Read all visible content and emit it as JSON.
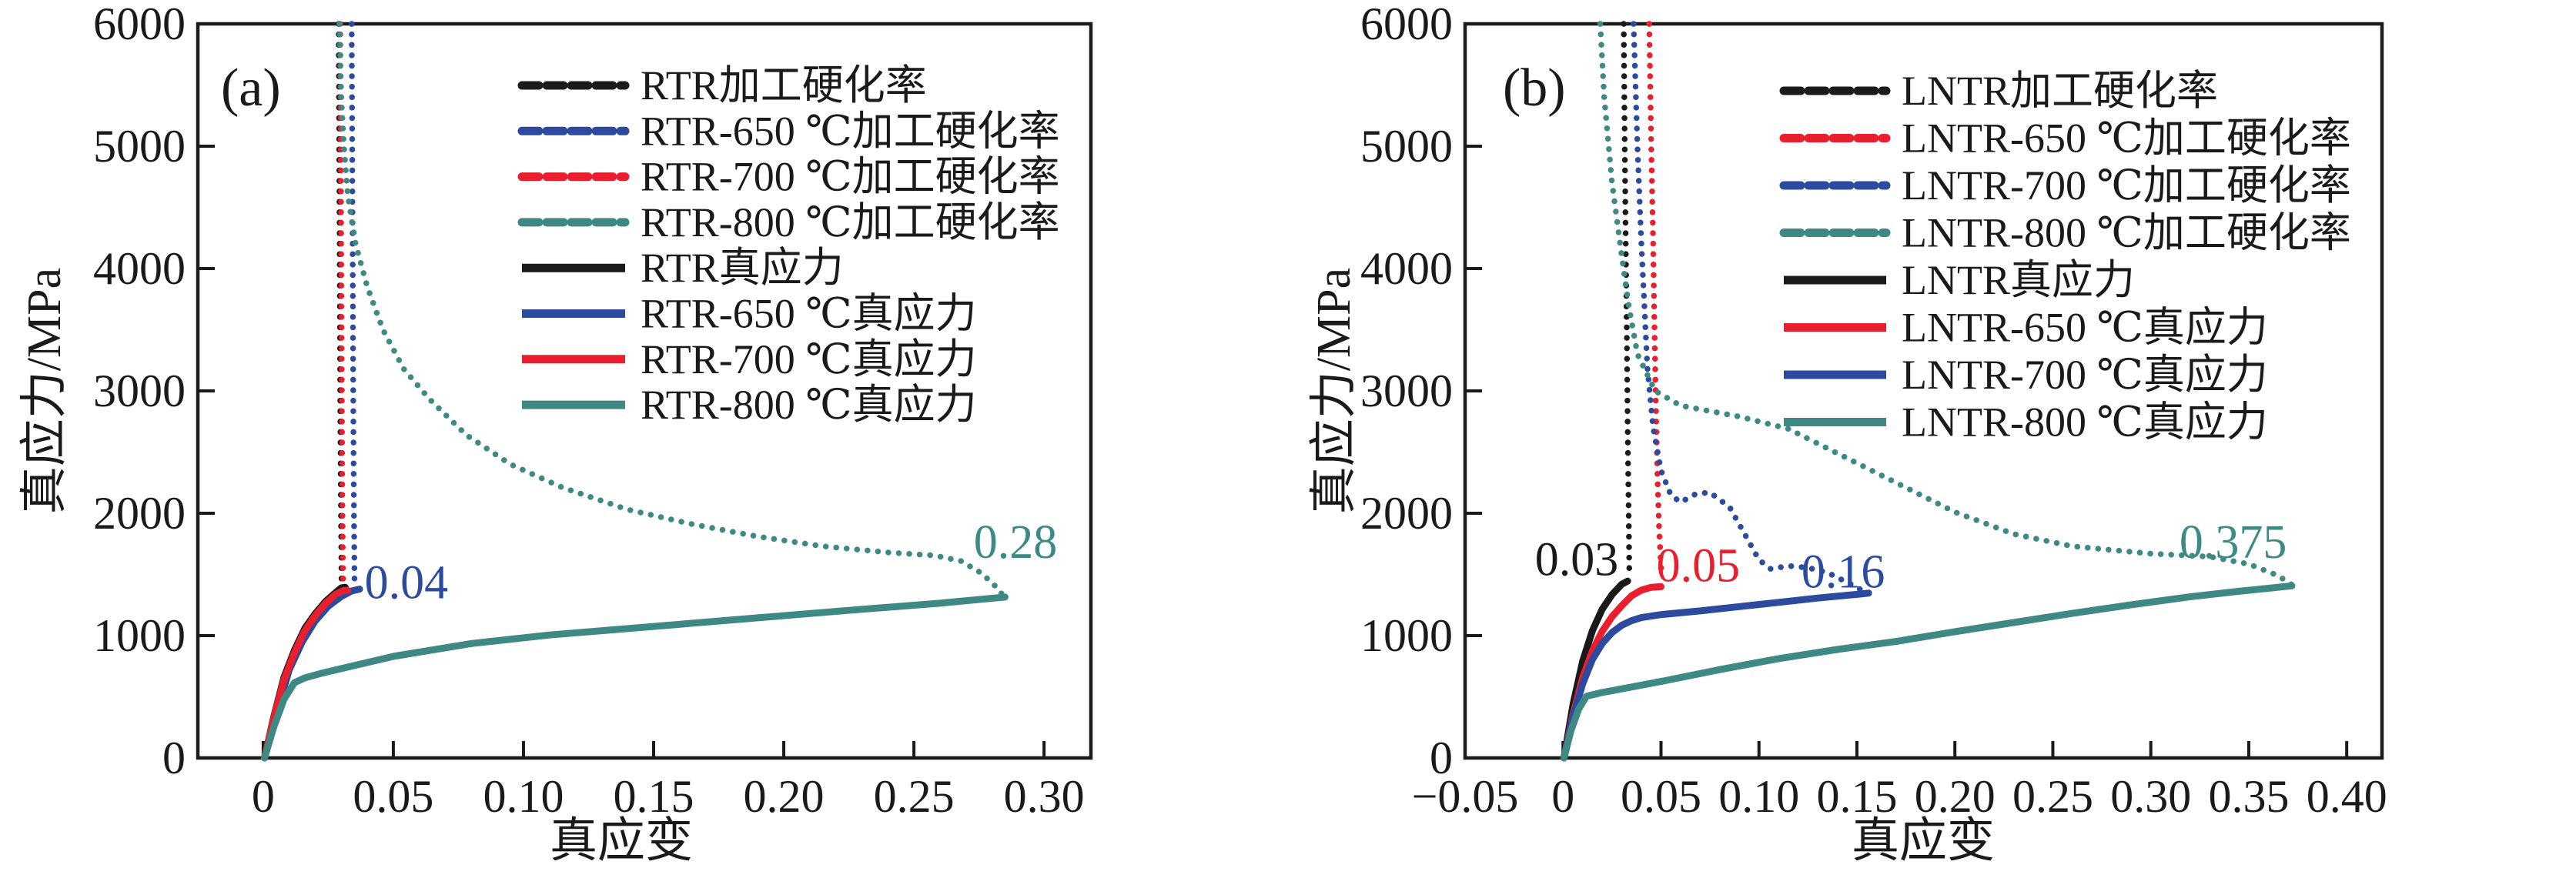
{
  "colors": {
    "black": "#1a1a1a",
    "blue": "#2d4b9e",
    "red": "#ea1f2e",
    "teal": "#3e8984"
  },
  "panel_a": {
    "letter": "(a)",
    "y_title": "真应力/MPa",
    "x_title": "真应变"
  },
  "panel_b": {
    "letter": "(b)",
    "y_title": "真应力/MPa",
    "x_title": "真应变"
  },
  "chart_data": [
    {
      "id": "a",
      "type": "line",
      "title": "",
      "xlabel": "真应变",
      "ylabel": "真应力/MPa",
      "xlim": [
        -0.0251,
        0.318
      ],
      "ylim": [
        0,
        6000
      ],
      "grid": false,
      "legend_position": "upper-right-inside",
      "x_ticks": [
        {
          "v": 0,
          "label": "0"
        },
        {
          "v": 0.05,
          "label": "0.05"
        },
        {
          "v": 0.1,
          "label": "0.10"
        },
        {
          "v": 0.15,
          "label": "0.15"
        },
        {
          "v": 0.2,
          "label": "0.20"
        },
        {
          "v": 0.25,
          "label": "0.25"
        },
        {
          "v": 0.3,
          "label": "0.30"
        }
      ],
      "y_ticks": [
        {
          "v": 0,
          "label": "0"
        },
        {
          "v": 1000,
          "label": "1000"
        },
        {
          "v": 2000,
          "label": "2000"
        },
        {
          "v": 3000,
          "label": "3000"
        },
        {
          "v": 4000,
          "label": "4000"
        },
        {
          "v": 5000,
          "label": "5000"
        },
        {
          "v": 6000,
          "label": "6000"
        }
      ],
      "series": [
        {
          "name": "RTR加工硬化率",
          "color": "black",
          "style": "dotted",
          "points": [
            [
              0.029,
              6000
            ],
            [
              0.0292,
              5000
            ],
            [
              0.0294,
              4000
            ],
            [
              0.0296,
              3000
            ],
            [
              0.0298,
              2200
            ],
            [
              0.03,
              1700
            ],
            [
              0.0301,
              1460
            ]
          ]
        },
        {
          "name": "RTR-650 ℃加工硬化率",
          "color": "blue",
          "style": "dotted",
          "points": [
            [
              0.034,
              6000
            ],
            [
              0.0342,
              5000
            ],
            [
              0.0344,
              4000
            ],
            [
              0.0346,
              3000
            ],
            [
              0.0348,
              2200
            ],
            [
              0.035,
              1700
            ],
            [
              0.0351,
              1430
            ]
          ]
        },
        {
          "name": "RTR-700 ℃加工硬化率",
          "color": "red",
          "style": "dotted",
          "points": [
            [
              0.0296,
              6000
            ],
            [
              0.0298,
              5000
            ],
            [
              0.03,
              4000
            ],
            [
              0.0302,
              3000
            ],
            [
              0.0304,
              2200
            ],
            [
              0.0306,
              1700
            ],
            [
              0.0307,
              1420
            ]
          ]
        },
        {
          "name": "RTR-800 ℃加工硬化率",
          "color": "teal",
          "style": "dotted",
          "points": [
            [
              0.0293,
              6000
            ],
            [
              0.03,
              5400
            ],
            [
              0.031,
              5000
            ],
            [
              0.0325,
              4600
            ],
            [
              0.0355,
              4200
            ],
            [
              0.04,
              3850
            ],
            [
              0.046,
              3500
            ],
            [
              0.054,
              3180
            ],
            [
              0.064,
              2930
            ],
            [
              0.078,
              2640
            ],
            [
              0.095,
              2400
            ],
            [
              0.115,
              2210
            ],
            [
              0.14,
              2030
            ],
            [
              0.165,
              1910
            ],
            [
              0.19,
              1810
            ],
            [
              0.215,
              1730
            ],
            [
              0.24,
              1680
            ],
            [
              0.258,
              1655
            ],
            [
              0.268,
              1610
            ],
            [
              0.276,
              1510
            ],
            [
              0.282,
              1390
            ],
            [
              0.2845,
              1320
            ]
          ]
        },
        {
          "name": "RTR真应力",
          "color": "black",
          "style": "solid",
          "points": [
            [
              0.0005,
              0
            ],
            [
              0.004,
              330
            ],
            [
              0.008,
              660
            ],
            [
              0.012,
              880
            ],
            [
              0.016,
              1060
            ],
            [
              0.02,
              1180
            ],
            [
              0.024,
              1280
            ],
            [
              0.028,
              1355
            ],
            [
              0.03,
              1390
            ],
            [
              0.0315,
              1395
            ]
          ]
        },
        {
          "name": "RTR-650 ℃真应力",
          "color": "blue",
          "style": "solid",
          "points": [
            [
              0.0005,
              0
            ],
            [
              0.005,
              360
            ],
            [
              0.01,
              720
            ],
            [
              0.015,
              950
            ],
            [
              0.02,
              1120
            ],
            [
              0.025,
              1240
            ],
            [
              0.03,
              1320
            ],
            [
              0.034,
              1365
            ],
            [
              0.037,
              1380
            ]
          ]
        },
        {
          "name": "RTR-700 ℃真应力",
          "color": "red",
          "style": "solid",
          "points": [
            [
              0.0005,
              0
            ],
            [
              0.004,
              320
            ],
            [
              0.008,
              640
            ],
            [
              0.012,
              860
            ],
            [
              0.016,
              1040
            ],
            [
              0.02,
              1165
            ],
            [
              0.024,
              1265
            ],
            [
              0.028,
              1340
            ],
            [
              0.031,
              1370
            ],
            [
              0.0325,
              1370
            ]
          ]
        },
        {
          "name": "RTR-800 ℃真应力",
          "color": "teal",
          "style": "solid",
          "points": [
            [
              0.0005,
              0
            ],
            [
              0.004,
              250
            ],
            [
              0.008,
              480
            ],
            [
              0.012,
              615
            ],
            [
              0.016,
              655
            ],
            [
              0.022,
              690
            ],
            [
              0.03,
              730
            ],
            [
              0.05,
              830
            ],
            [
              0.08,
              935
            ],
            [
              0.11,
              1005
            ],
            [
              0.15,
              1075
            ],
            [
              0.19,
              1145
            ],
            [
              0.23,
              1215
            ],
            [
              0.26,
              1265
            ],
            [
              0.285,
              1315
            ]
          ]
        }
      ],
      "annotations": [
        {
          "text": "0.04",
          "color": "blue",
          "x": 0.055,
          "y": 1430
        },
        {
          "text": "0.28",
          "color": "teal",
          "x": 0.289,
          "y": 1760
        }
      ]
    },
    {
      "id": "b",
      "type": "line",
      "title": "",
      "xlabel": "真应变",
      "ylabel": "真应力/MPa",
      "xlim": [
        -0.05,
        0.418
      ],
      "ylim": [
        0,
        6000
      ],
      "grid": false,
      "legend_position": "upper-right-inside",
      "x_ticks": [
        {
          "v": -0.05,
          "label": "−0.05"
        },
        {
          "v": 0,
          "label": "0"
        },
        {
          "v": 0.05,
          "label": "0.05"
        },
        {
          "v": 0.1,
          "label": "0.10"
        },
        {
          "v": 0.15,
          "label": "0.15"
        },
        {
          "v": 0.2,
          "label": "0.20"
        },
        {
          "v": 0.25,
          "label": "0.25"
        },
        {
          "v": 0.3,
          "label": "0.30"
        },
        {
          "v": 0.35,
          "label": "0.35"
        },
        {
          "v": 0.4,
          "label": "0.40"
        }
      ],
      "y_ticks": [
        {
          "v": 0,
          "label": "0"
        },
        {
          "v": 1000,
          "label": "1000"
        },
        {
          "v": 2000,
          "label": "2000"
        },
        {
          "v": 3000,
          "label": "3000"
        },
        {
          "v": 4000,
          "label": "4000"
        },
        {
          "v": 5000,
          "label": "5000"
        },
        {
          "v": 6000,
          "label": "6000"
        }
      ],
      "series": [
        {
          "name": "LNTR加工硬化率",
          "color": "black",
          "style": "dotted",
          "points": [
            [
              0.031,
              6000
            ],
            [
              0.0315,
              5000
            ],
            [
              0.032,
              4200
            ],
            [
              0.0325,
              3500
            ],
            [
              0.033,
              2700
            ],
            [
              0.0335,
              2000
            ],
            [
              0.0338,
              1550
            ]
          ]
        },
        {
          "name": "LNTR-650 ℃加工硬化率",
          "color": "red",
          "style": "dotted",
          "points": [
            [
              0.044,
              6000
            ],
            [
              0.045,
              5000
            ],
            [
              0.046,
              4200
            ],
            [
              0.0468,
              3400
            ],
            [
              0.0475,
              2800
            ],
            [
              0.0482,
              2300
            ],
            [
              0.049,
              1900
            ],
            [
              0.05,
              1560
            ],
            [
              0.0505,
              1470
            ]
          ]
        },
        {
          "name": "LNTR-700 ℃加工硬化率",
          "color": "blue",
          "style": "dotted",
          "points": [
            [
              0.036,
              6000
            ],
            [
              0.038,
              5000
            ],
            [
              0.04,
              4200
            ],
            [
              0.0415,
              3700
            ],
            [
              0.043,
              3200
            ],
            [
              0.046,
              2700
            ],
            [
              0.05,
              2350
            ],
            [
              0.055,
              2150
            ],
            [
              0.06,
              2090
            ],
            [
              0.068,
              2160
            ],
            [
              0.075,
              2170
            ],
            [
              0.085,
              2050
            ],
            [
              0.092,
              1850
            ],
            [
              0.1,
              1620
            ],
            [
              0.106,
              1545
            ],
            [
              0.115,
              1570
            ],
            [
              0.125,
              1555
            ],
            [
              0.135,
              1515
            ],
            [
              0.145,
              1435
            ],
            [
              0.155,
              1350
            ]
          ]
        },
        {
          "name": "LNTR-800 ℃加工硬化率",
          "color": "teal",
          "style": "dotted",
          "points": [
            [
              0.019,
              6000
            ],
            [
              0.021,
              5400
            ],
            [
              0.025,
              4700
            ],
            [
              0.03,
              4100
            ],
            [
              0.0335,
              3700
            ],
            [
              0.038,
              3300
            ],
            [
              0.047,
              3000
            ],
            [
              0.06,
              2880
            ],
            [
              0.09,
              2790
            ],
            [
              0.115,
              2690
            ],
            [
              0.14,
              2490
            ],
            [
              0.17,
              2250
            ],
            [
              0.2,
              2010
            ],
            [
              0.23,
              1830
            ],
            [
              0.26,
              1730
            ],
            [
              0.3,
              1670
            ],
            [
              0.33,
              1645
            ],
            [
              0.35,
              1585
            ],
            [
              0.365,
              1490
            ],
            [
              0.372,
              1415
            ]
          ]
        },
        {
          "name": "LNTR真应力",
          "color": "black",
          "style": "solid",
          "points": [
            [
              0.0005,
              0
            ],
            [
              0.005,
              430
            ],
            [
              0.01,
              790
            ],
            [
              0.015,
              1040
            ],
            [
              0.02,
              1215
            ],
            [
              0.025,
              1335
            ],
            [
              0.03,
              1420
            ],
            [
              0.033,
              1445
            ]
          ]
        },
        {
          "name": "LNTR-650 ℃真应力",
          "color": "red",
          "style": "solid",
          "points": [
            [
              0.0005,
              0
            ],
            [
              0.005,
              350
            ],
            [
              0.01,
              655
            ],
            [
              0.015,
              875
            ],
            [
              0.02,
              1035
            ],
            [
              0.025,
              1155
            ],
            [
              0.03,
              1245
            ],
            [
              0.035,
              1325
            ],
            [
              0.04,
              1372
            ],
            [
              0.045,
              1395
            ],
            [
              0.05,
              1400
            ]
          ]
        },
        {
          "name": "LNTR-700 ℃真应力",
          "color": "blue",
          "style": "solid",
          "points": [
            [
              0.0005,
              0
            ],
            [
              0.005,
              330
            ],
            [
              0.01,
              605
            ],
            [
              0.015,
              805
            ],
            [
              0.02,
              935
            ],
            [
              0.025,
              1025
            ],
            [
              0.03,
              1085
            ],
            [
              0.035,
              1122
            ],
            [
              0.04,
              1147
            ],
            [
              0.05,
              1172
            ],
            [
              0.07,
              1202
            ],
            [
              0.09,
              1237
            ],
            [
              0.11,
              1272
            ],
            [
              0.13,
              1307
            ],
            [
              0.15,
              1337
            ],
            [
              0.156,
              1347
            ]
          ]
        },
        {
          "name": "LNTR-800 ℃真应力",
          "color": "teal",
          "style": "solid",
          "points": [
            [
              0.0005,
              0
            ],
            [
              0.004,
              220
            ],
            [
              0.008,
              400
            ],
            [
              0.012,
              505
            ],
            [
              0.02,
              535
            ],
            [
              0.03,
              565
            ],
            [
              0.05,
              625
            ],
            [
              0.08,
              722
            ],
            [
              0.11,
              812
            ],
            [
              0.14,
              887
            ],
            [
              0.17,
              952
            ],
            [
              0.2,
              1032
            ],
            [
              0.23,
              1107
            ],
            [
              0.26,
              1182
            ],
            [
              0.29,
              1252
            ],
            [
              0.32,
              1317
            ],
            [
              0.345,
              1362
            ],
            [
              0.36,
              1387
            ],
            [
              0.372,
              1407
            ]
          ]
        }
      ],
      "annotations": [
        {
          "text": "0.03",
          "color": "black",
          "x": 0.007,
          "y": 1620
        },
        {
          "text": "0.05",
          "color": "red",
          "x": 0.069,
          "y": 1570
        },
        {
          "text": "0.16",
          "color": "blue",
          "x": 0.143,
          "y": 1520
        },
        {
          "text": "0.375",
          "color": "teal",
          "x": 0.342,
          "y": 1760
        }
      ]
    }
  ]
}
